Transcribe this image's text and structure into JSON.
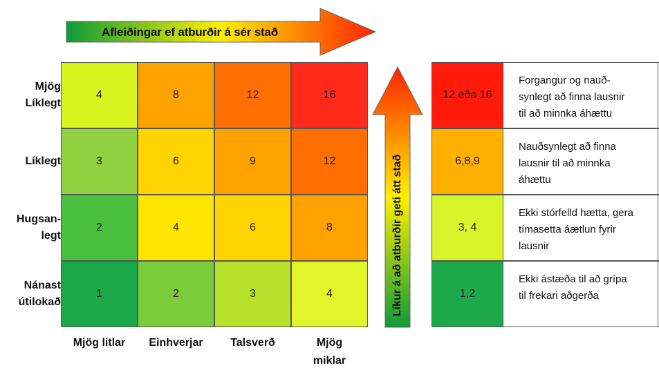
{
  "top_arrow": {
    "label": "Afleiðingar ef atburðir á sér stað"
  },
  "side_arrow": {
    "label": "Líkur á að atburðir geti átt stað"
  },
  "rows": [
    {
      "label_lines": [
        "Mjög",
        "Líklegt"
      ]
    },
    {
      "label_lines": [
        "Líklegt"
      ]
    },
    {
      "label_lines": [
        "Hugsan-",
        "legt"
      ]
    },
    {
      "label_lines": [
        "Nánast",
        "útilokað"
      ]
    }
  ],
  "columns": [
    {
      "label_lines": [
        "Mjög litlar"
      ]
    },
    {
      "label_lines": [
        "Einhverjar"
      ]
    },
    {
      "label_lines": [
        "Talsverð"
      ]
    },
    {
      "label_lines": [
        "Mjög",
        "miklar"
      ]
    }
  ],
  "matrix": [
    [
      {
        "value": "4",
        "color": "#d9f51f"
      },
      {
        "value": "8",
        "color": "#ffa200"
      },
      {
        "value": "12",
        "color": "#ff6f00"
      },
      {
        "value": "16",
        "color": "#ff2a1a"
      }
    ],
    [
      {
        "value": "3",
        "color": "#8fd141"
      },
      {
        "value": "6",
        "color": "#ffd400"
      },
      {
        "value": "9",
        "color": "#ffa200"
      },
      {
        "value": "12",
        "color": "#ff6f00"
      }
    ],
    [
      {
        "value": "2",
        "color": "#4bc040"
      },
      {
        "value": "4",
        "color": "#ffe500"
      },
      {
        "value": "6",
        "color": "#ffd400"
      },
      {
        "value": "8",
        "color": "#ffa200"
      }
    ],
    [
      {
        "value": "1",
        "color": "#1aa84a"
      },
      {
        "value": "2",
        "color": "#7acd38"
      },
      {
        "value": "3",
        "color": "#b7e22c"
      },
      {
        "value": "4",
        "color": "#e1f52a"
      }
    ]
  ],
  "legend": [
    {
      "value": "12 eða 16",
      "color": "#ff1a0a",
      "text_lines": [
        "Forgangur og nauð-",
        "synlegt að finna lausnir",
        "til að minnka áhættu"
      ]
    },
    {
      "value": "6,8,9",
      "color": "#ffb000",
      "text_lines": [
        "Nauðsynlegt að finna",
        "lausnir til að minnka",
        "áhættu"
      ]
    },
    {
      "value": "3, 4",
      "color": "#d7f52a",
      "text_lines": [
        "Ekki stórfelld hætta, gera",
        "tímasetta áætlun fyrir",
        "lausnir"
      ]
    },
    {
      "value": "1,2",
      "color": "#1ea84c",
      "text_lines": [
        "Ekki ástæða til að grípa",
        "til frekari aðgerða"
      ]
    }
  ]
}
